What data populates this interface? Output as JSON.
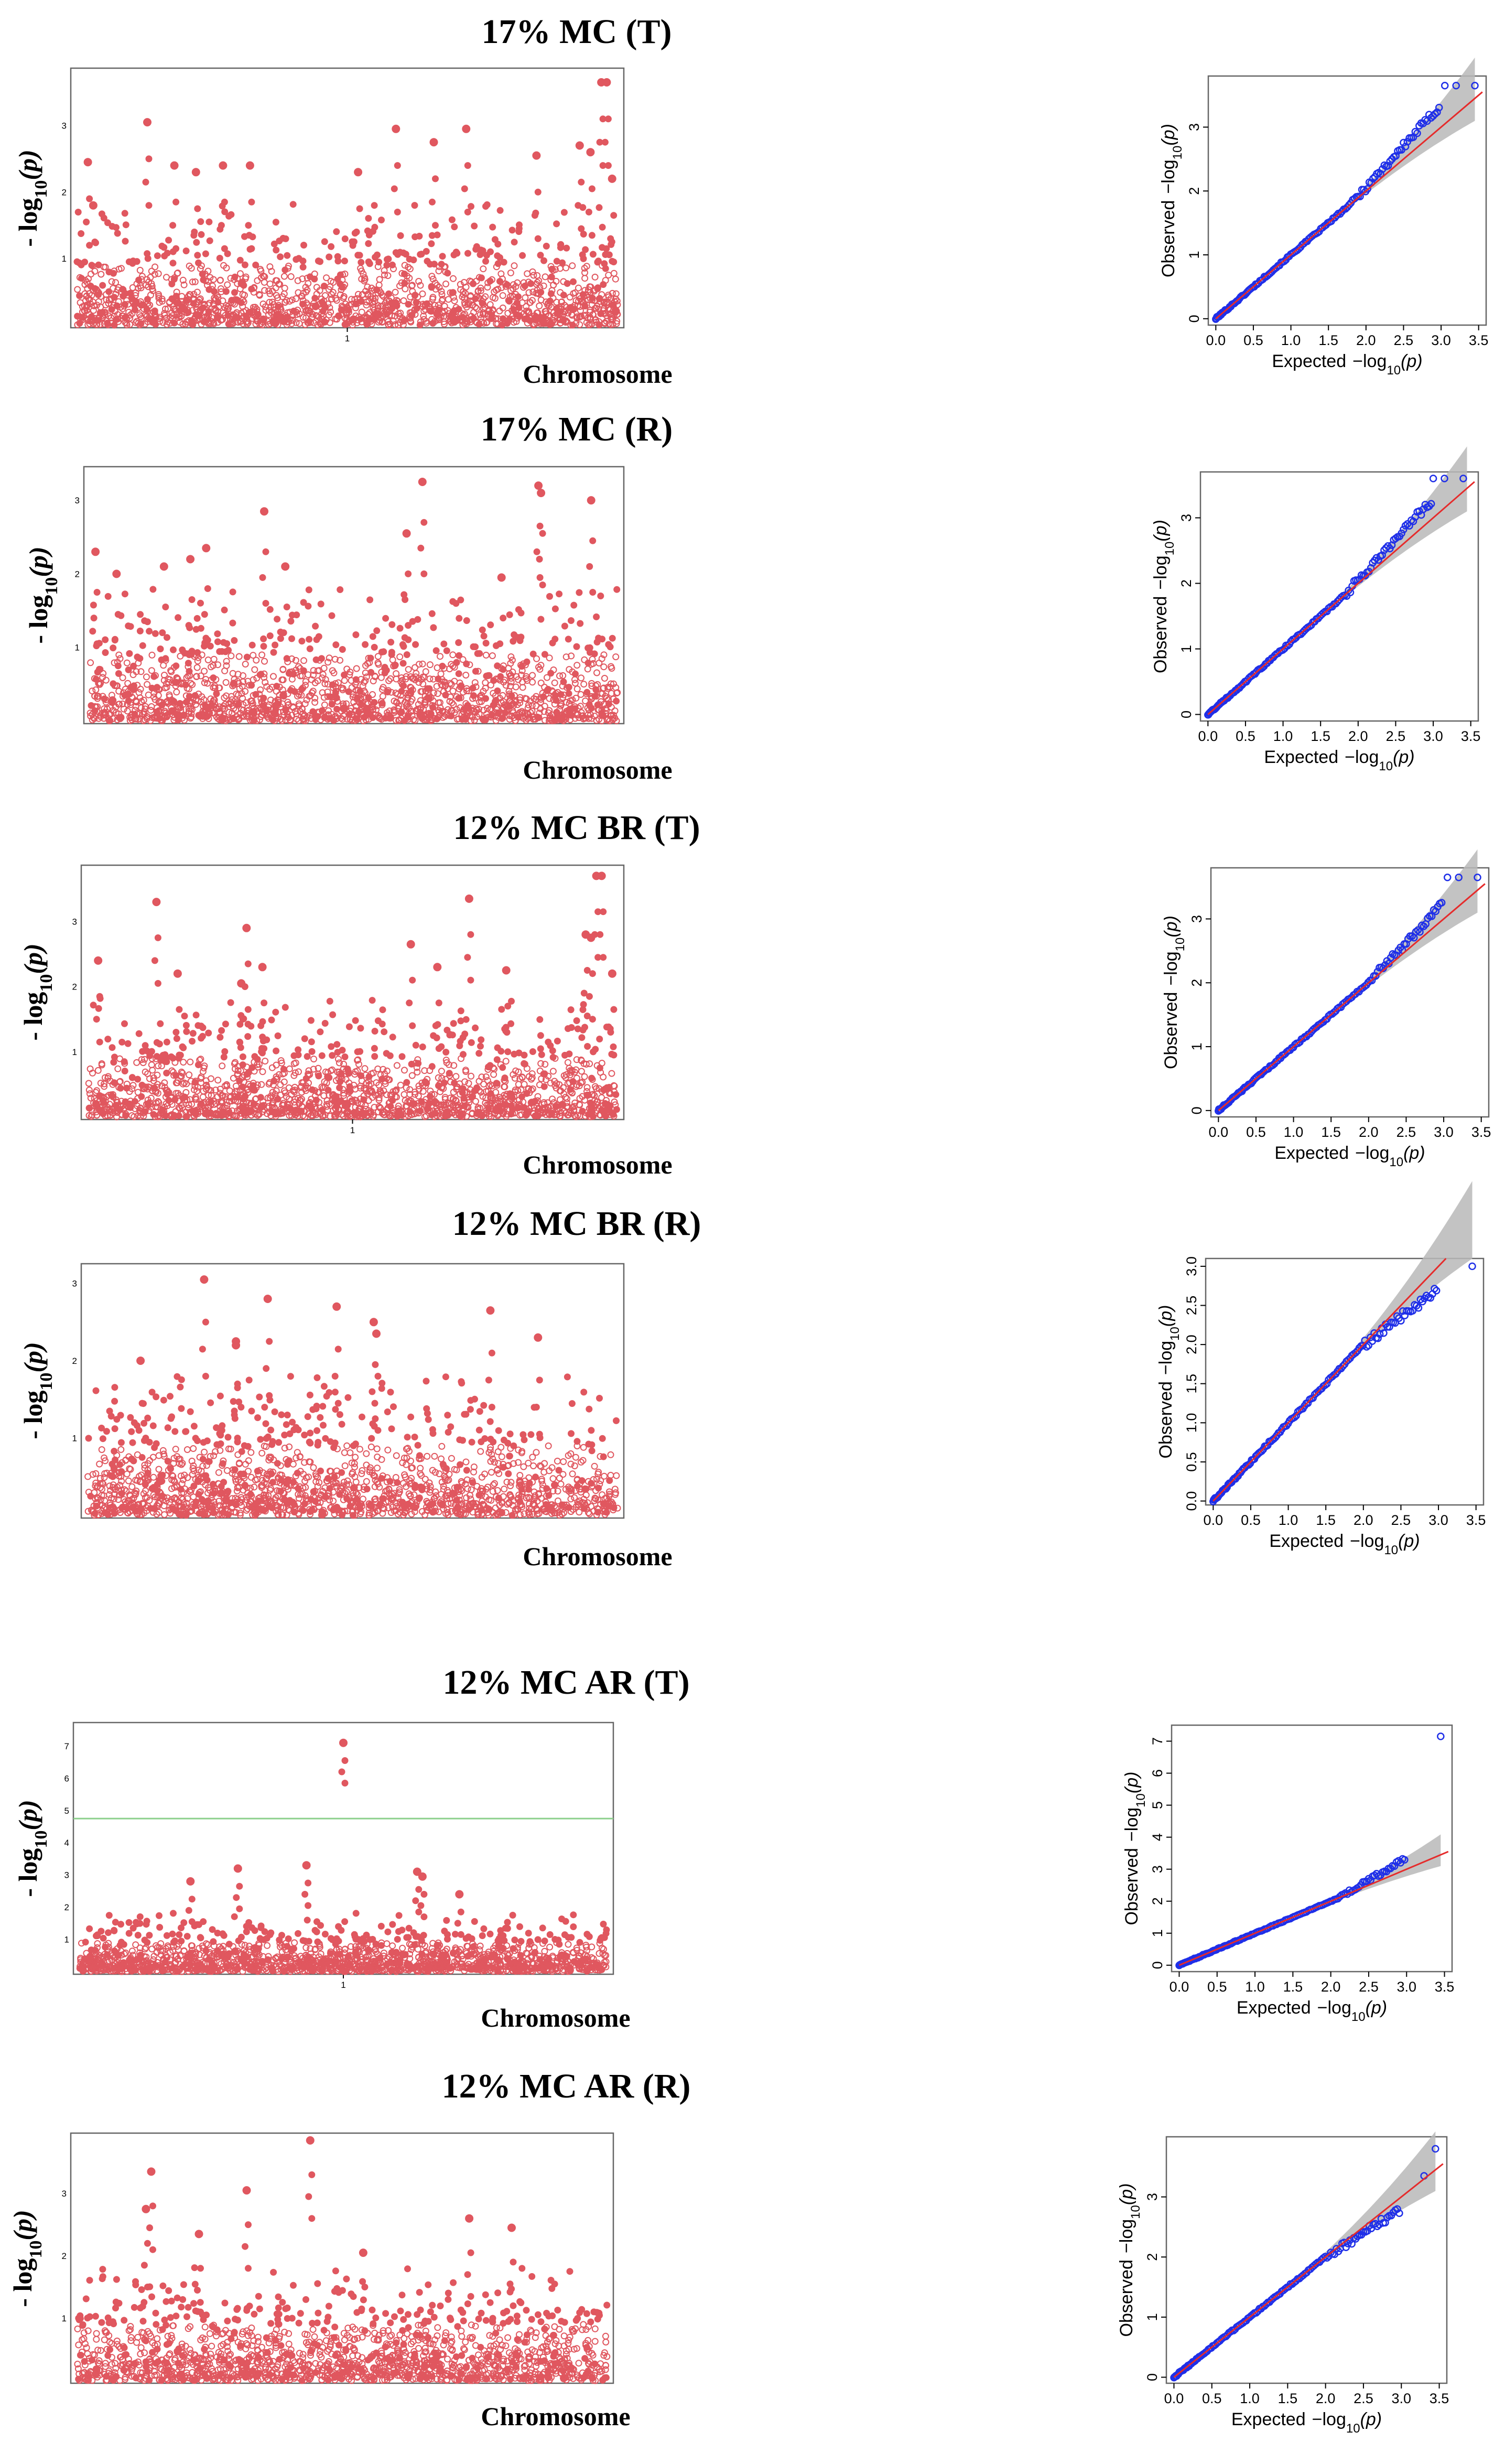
{
  "colors": {
    "point": "#e0575f",
    "qq_point": "#1f2fe8",
    "qq_line": "#e52b2b",
    "band": "#b8b8b8",
    "threshold": "#8cd08c"
  },
  "chart_data": [
    {
      "type": "scatter",
      "subtype": "manhattan",
      "title": "17% MC (T)",
      "xlabel": "Chromosome",
      "ylabel_prefix": "- log",
      "ylabel_sub": "10",
      "ylabel_suffix": "(p)",
      "x_tick_labels": [
        "1"
      ],
      "y_ticks": [
        "1",
        "2",
        "3"
      ],
      "ylim": [
        0,
        3.8
      ],
      "threshold": null,
      "n_points": 1600,
      "seed": 11,
      "peaks": [
        [
          0.02,
          2.45
        ],
        [
          0.03,
          1.8
        ],
        [
          0.13,
          3.05
        ],
        [
          0.18,
          2.4
        ],
        [
          0.22,
          2.3
        ],
        [
          0.27,
          2.4
        ],
        [
          0.32,
          2.4
        ],
        [
          0.52,
          2.3
        ],
        [
          0.59,
          2.95
        ],
        [
          0.66,
          2.75
        ],
        [
          0.72,
          2.95
        ],
        [
          0.85,
          2.55
        ],
        [
          0.97,
          3.65
        ],
        [
          0.98,
          3.65
        ],
        [
          0.93,
          2.7
        ],
        [
          0.95,
          2.6
        ],
        [
          0.99,
          2.2
        ]
      ]
    },
    {
      "type": "scatter",
      "subtype": "manhattan",
      "title": "17% MC (R)",
      "xlabel": "Chromosome",
      "ylabel_prefix": "- log",
      "ylabel_sub": "10",
      "ylabel_suffix": "(p)",
      "x_tick_labels": [],
      "y_ticks": [
        "1",
        "2",
        "3"
      ],
      "ylim": [
        0,
        3.4
      ],
      "threshold": null,
      "n_points": 1600,
      "seed": 23,
      "peaks": [
        [
          0.01,
          2.3
        ],
        [
          0.05,
          2.0
        ],
        [
          0.14,
          2.1
        ],
        [
          0.19,
          2.2
        ],
        [
          0.22,
          2.35
        ],
        [
          0.33,
          2.85
        ],
        [
          0.6,
          2.55
        ],
        [
          0.63,
          3.25
        ],
        [
          0.78,
          1.95
        ],
        [
          0.85,
          3.2
        ],
        [
          0.855,
          3.1
        ],
        [
          0.95,
          3.0
        ],
        [
          0.37,
          2.1
        ]
      ]
    },
    {
      "type": "scatter",
      "subtype": "manhattan",
      "title": "12% MC BR (T)",
      "xlabel": "Chromosome",
      "ylabel_prefix": "- log",
      "ylabel_sub": "10",
      "ylabel_suffix": "(p)",
      "x_tick_labels": [
        "1"
      ],
      "y_ticks": [
        "1",
        "2",
        "3"
      ],
      "ylim": [
        0,
        3.8
      ],
      "threshold": null,
      "n_points": 1600,
      "seed": 37,
      "peaks": [
        [
          0.02,
          2.4
        ],
        [
          0.13,
          3.3
        ],
        [
          0.17,
          2.2
        ],
        [
          0.29,
          2.05
        ],
        [
          0.3,
          2.9
        ],
        [
          0.33,
          2.3
        ],
        [
          0.61,
          2.65
        ],
        [
          0.66,
          2.3
        ],
        [
          0.72,
          3.35
        ],
        [
          0.79,
          2.25
        ],
        [
          0.96,
          3.7
        ],
        [
          0.97,
          3.7
        ],
        [
          0.94,
          2.8
        ],
        [
          0.95,
          2.75
        ],
        [
          0.99,
          2.2
        ]
      ]
    },
    {
      "type": "scatter",
      "subtype": "manhattan",
      "title": "12% MC BR (R)",
      "xlabel": "Chromosome",
      "ylabel_prefix": "- log",
      "ylabel_sub": "10",
      "ylabel_suffix": "(p)",
      "x_tick_labels": [],
      "y_ticks": [
        "1",
        "2",
        "3"
      ],
      "ylim": [
        0,
        3.2
      ],
      "threshold": null,
      "n_points": 1600,
      "seed": 53,
      "peaks": [
        [
          0.22,
          3.05
        ],
        [
          0.34,
          2.8
        ],
        [
          0.47,
          2.7
        ],
        [
          0.54,
          2.5
        ],
        [
          0.545,
          2.35
        ],
        [
          0.76,
          2.65
        ],
        [
          0.85,
          2.3
        ],
        [
          0.28,
          2.25
        ],
        [
          0.28,
          2.2
        ],
        [
          0.1,
          2.0
        ]
      ]
    },
    {
      "type": "scatter",
      "subtype": "manhattan",
      "title": "12% MC AR (T)",
      "xlabel": "Chromosome",
      "ylabel_prefix": "- log",
      "ylabel_sub": "10",
      "ylabel_suffix": "(p)",
      "x_tick_labels": [
        "1"
      ],
      "y_ticks": [
        "1",
        "2",
        "3",
        "4",
        "5",
        "6",
        "7"
      ],
      "ylim": [
        0,
        7.6
      ],
      "threshold": 4.75,
      "n_points": 1600,
      "seed": 71,
      "peaks": [
        [
          0.5,
          7.1
        ],
        [
          0.3,
          3.2
        ],
        [
          0.43,
          3.3
        ],
        [
          0.64,
          3.1
        ],
        [
          0.65,
          2.95
        ],
        [
          0.21,
          2.8
        ],
        [
          0.72,
          2.4
        ]
      ]
    },
    {
      "type": "scatter",
      "subtype": "manhattan",
      "title": "12% MC AR (R)",
      "xlabel": "Chromosome",
      "ylabel_prefix": "- log",
      "ylabel_sub": "10",
      "ylabel_suffix": "(p)",
      "x_tick_labels": [],
      "y_ticks": [
        "1",
        "2",
        "3"
      ],
      "ylim": [
        0,
        3.9
      ],
      "threshold": null,
      "n_points": 1600,
      "seed": 89,
      "peaks": [
        [
          0.14,
          3.35
        ],
        [
          0.13,
          2.75
        ],
        [
          0.32,
          3.05
        ],
        [
          0.44,
          3.85
        ],
        [
          0.74,
          2.6
        ],
        [
          0.82,
          2.45
        ],
        [
          0.23,
          2.35
        ],
        [
          0.54,
          2.05
        ]
      ]
    }
  ],
  "qq_data": [
    {
      "type": "scatter",
      "subtype": "qq",
      "xlabel": "Expected",
      "ylabel": "Observed",
      "axis_fn": "−log",
      "axis_sub": "10",
      "axis_arg": "(p)",
      "x_ticks": [
        "0.0",
        "0.5",
        "1.0",
        "1.5",
        "2.0",
        "2.5",
        "3.0",
        "3.5"
      ],
      "y_ticks": [
        "0",
        "1",
        "2",
        "3"
      ],
      "xlim": [
        -0.1,
        3.6
      ],
      "ylim": [
        -0.1,
        3.8
      ],
      "deviation_start": 1.8,
      "deviation": 0.35,
      "top_points": [
        [
          3.05,
          3.65
        ],
        [
          3.2,
          3.65
        ],
        [
          3.45,
          3.65
        ]
      ],
      "seed": 101
    },
    {
      "type": "scatter",
      "subtype": "qq",
      "xlabel": "Expected",
      "ylabel": "Observed",
      "axis_fn": "−log",
      "axis_sub": "10",
      "axis_arg": "(p)",
      "x_ticks": [
        "0.0",
        "0.5",
        "1.0",
        "1.5",
        "2.0",
        "2.5",
        "3.0",
        "3.5"
      ],
      "y_ticks": [
        "0",
        "1",
        "2",
        "3"
      ],
      "xlim": [
        -0.1,
        3.6
      ],
      "ylim": [
        -0.1,
        3.7
      ],
      "deviation_start": 1.8,
      "deviation": 0.3,
      "top_points": [
        [
          3.0,
          3.6
        ],
        [
          3.15,
          3.6
        ],
        [
          3.4,
          3.6
        ]
      ],
      "seed": 131
    },
    {
      "type": "scatter",
      "subtype": "qq",
      "xlabel": "Expected",
      "ylabel": "Observed",
      "axis_fn": "−log",
      "axis_sub": "10",
      "axis_arg": "(p)",
      "x_ticks": [
        "0.0",
        "0.5",
        "1.0",
        "1.5",
        "2.0",
        "2.5",
        "3.0",
        "3.5"
      ],
      "y_ticks": [
        "0",
        "1",
        "2",
        "3"
      ],
      "xlim": [
        -0.1,
        3.6
      ],
      "ylim": [
        -0.1,
        3.8
      ],
      "deviation_start": 2.0,
      "deviation": 0.25,
      "top_points": [
        [
          3.05,
          3.65
        ],
        [
          3.2,
          3.65
        ],
        [
          3.45,
          3.65
        ]
      ],
      "seed": 151
    },
    {
      "type": "scatter",
      "subtype": "qq",
      "xlabel": "Expected",
      "ylabel": "Observed",
      "axis_fn": "−log",
      "axis_sub": "10",
      "axis_arg": "(p)",
      "x_ticks": [
        "0.0",
        "0.5",
        "1.0",
        "1.5",
        "2.0",
        "2.5",
        "3.0",
        "3.5"
      ],
      "y_ticks": [
        "0.0",
        "0.5",
        "1.0",
        "1.5",
        "2.0",
        "2.5",
        "3.0"
      ],
      "xlim": [
        -0.1,
        3.6
      ],
      "ylim": [
        -0.05,
        3.1
      ],
      "deviation_start": 2.0,
      "deviation": -0.3,
      "top_points": [
        [
          3.45,
          3.0
        ]
      ],
      "seed": 171
    },
    {
      "type": "scatter",
      "subtype": "qq",
      "xlabel": "Expected",
      "ylabel": "Observed",
      "axis_fn": "−log",
      "axis_sub": "10",
      "axis_arg": "(p)",
      "x_ticks": [
        "0.0",
        "0.5",
        "1.0",
        "1.5",
        "2.0",
        "2.5",
        "3.0",
        "3.5"
      ],
      "y_ticks": [
        "0",
        "1",
        "2",
        "3",
        "4",
        "5",
        "6",
        "7"
      ],
      "xlim": [
        -0.1,
        3.6
      ],
      "ylim": [
        -0.2,
        7.5
      ],
      "deviation_start": 2.1,
      "deviation": 0.35,
      "top_points": [
        [
          3.45,
          7.15
        ]
      ],
      "seed": 191
    },
    {
      "type": "scatter",
      "subtype": "qq",
      "xlabel": "Expected",
      "ylabel": "Observed",
      "axis_fn": "−log",
      "axis_sub": "10",
      "axis_arg": "(p)",
      "x_ticks": [
        "0.0",
        "0.5",
        "1.0",
        "1.5",
        "2.0",
        "2.5",
        "3.0",
        "3.5"
      ],
      "y_ticks": [
        "0",
        "1",
        "2",
        "3"
      ],
      "xlim": [
        -0.1,
        3.6
      ],
      "ylim": [
        -0.1,
        4.0
      ],
      "deviation_start": 2.0,
      "deviation": -0.2,
      "top_points": [
        [
          3.45,
          3.8
        ],
        [
          3.3,
          3.35
        ]
      ],
      "seed": 211
    }
  ]
}
